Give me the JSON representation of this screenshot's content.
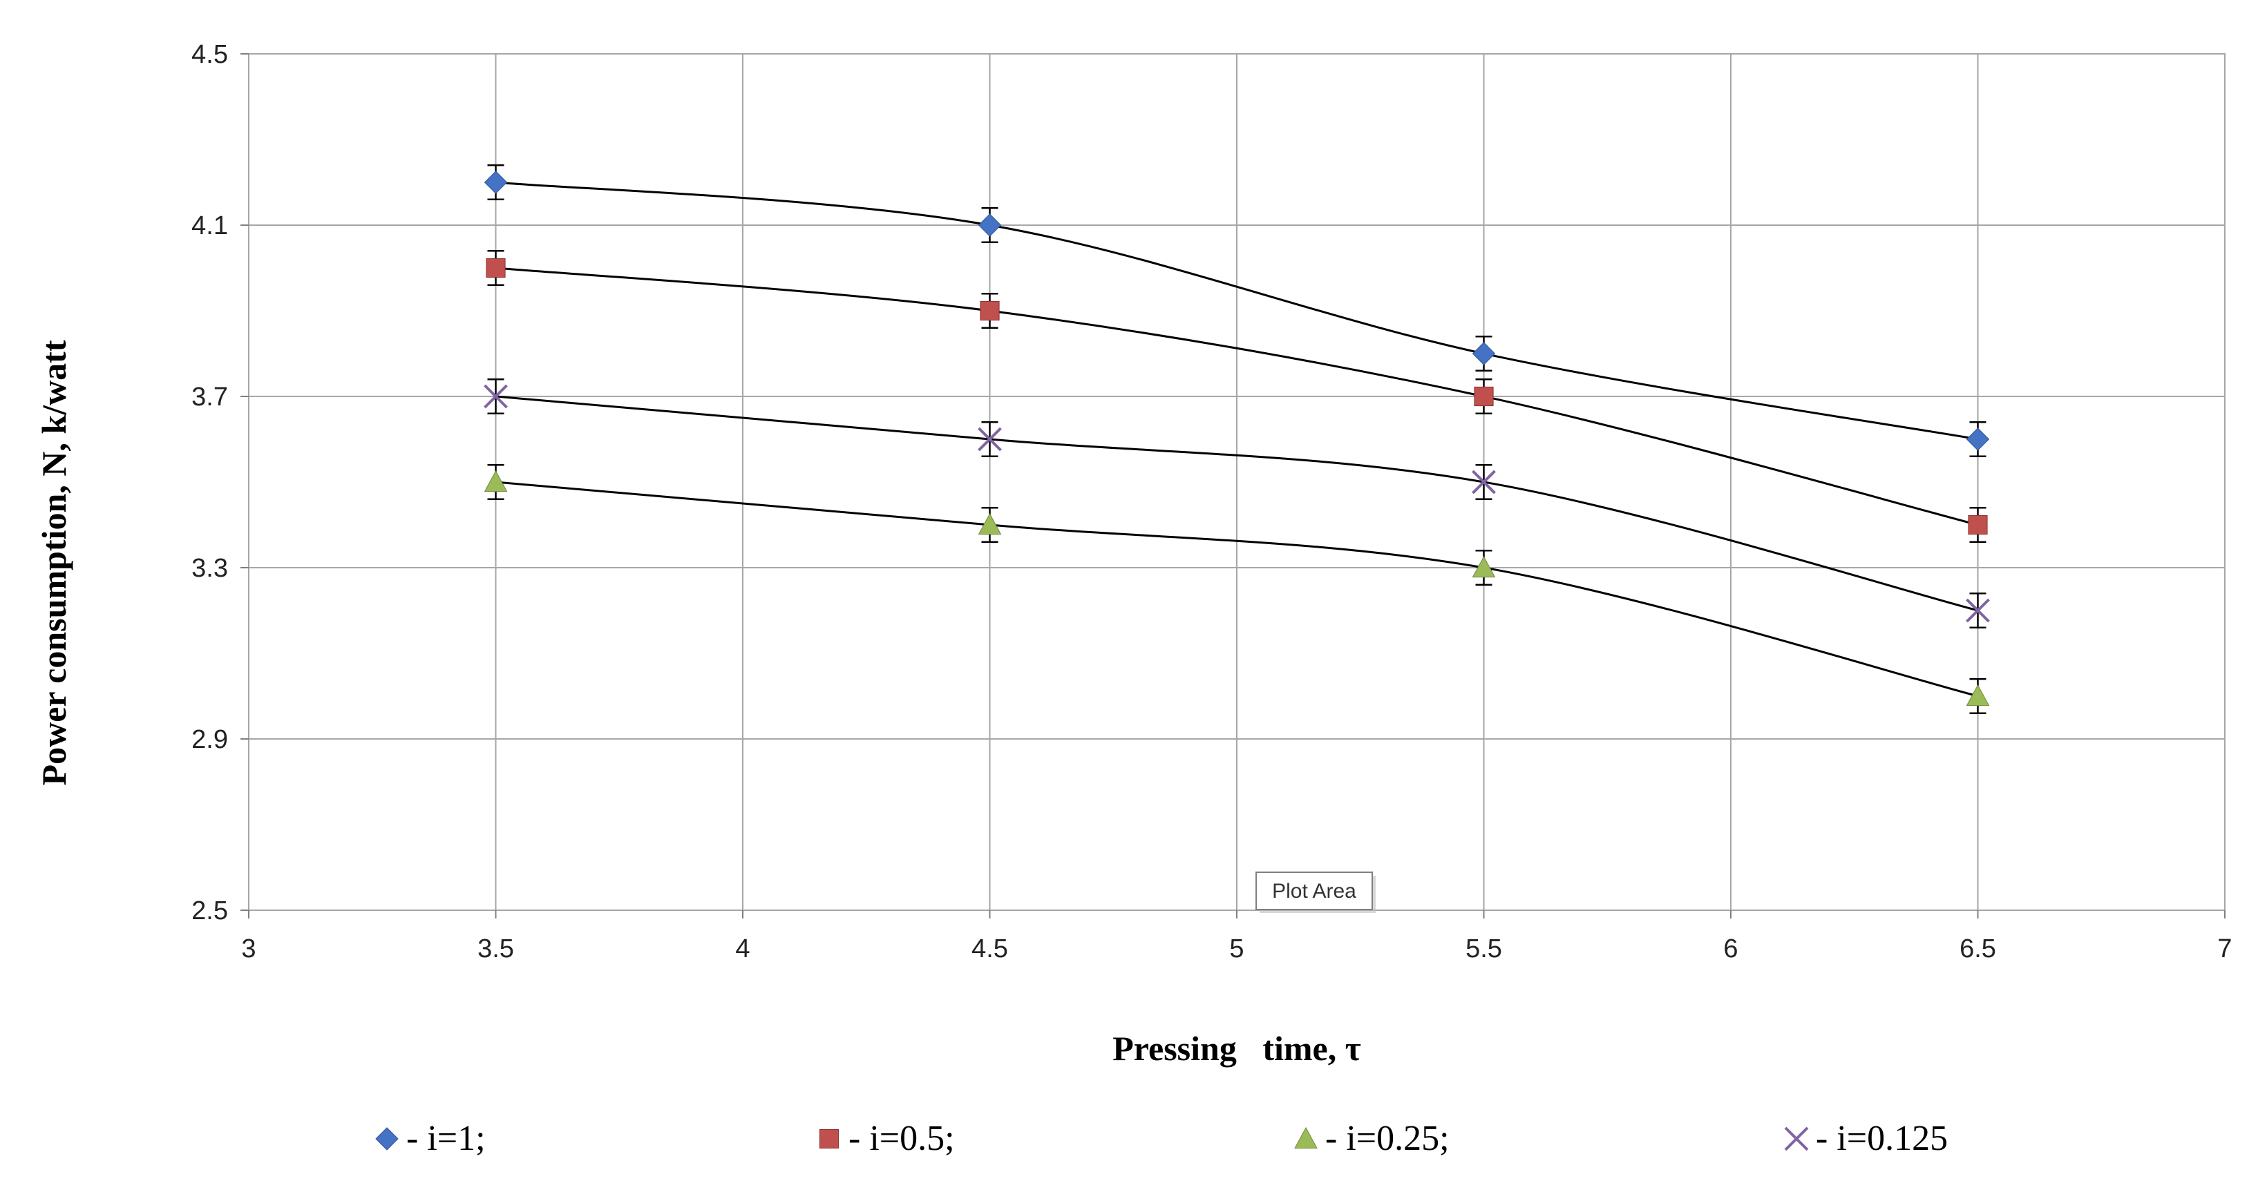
{
  "chart_data": {
    "type": "line",
    "xlabel": "Pressing   time, τ",
    "ylabel": "Power consumption,  N, k/watt",
    "xlim": [
      3,
      7
    ],
    "ylim": [
      2.5,
      4.5
    ],
    "x_ticks": [
      3,
      3.5,
      4,
      4.5,
      5,
      5.5,
      6,
      6.5,
      7
    ],
    "y_ticks": [
      2.5,
      2.9,
      3.3,
      3.7,
      4.1,
      4.5
    ],
    "x_tick_labels": [
      "3",
      "3.5",
      "4",
      "4.5",
      "5",
      "5.5",
      "6",
      "6.5",
      "7"
    ],
    "y_tick_labels": [
      "2.5",
      "2.9",
      "3.3",
      "3.7",
      "4.1",
      "4.5"
    ],
    "grid": true,
    "error_bar": 0.04,
    "x": [
      3.5,
      4.5,
      5.5,
      6.5
    ],
    "series": [
      {
        "name": "i=1",
        "legend_label": "- i=1;",
        "marker": "diamond",
        "color": "#4472C4",
        "values": [
          4.2,
          4.1,
          3.8,
          3.6
        ]
      },
      {
        "name": "i=0.5",
        "legend_label": "- i=0.5;",
        "marker": "square",
        "color": "#C0504D",
        "values": [
          4.0,
          3.9,
          3.7,
          3.4
        ]
      },
      {
        "name": "i=0.25",
        "legend_label": "- i=0.25;",
        "marker": "triangle",
        "color": "#9BBB59",
        "values": [
          3.5,
          3.4,
          3.3,
          3.0
        ]
      },
      {
        "name": "i=0.125",
        "legend_label": "- i=0.125",
        "marker": "x",
        "color": "#8064A2",
        "values": [
          3.7,
          3.6,
          3.5,
          3.2
        ]
      }
    ],
    "legend_position": "bottom",
    "tooltip": "Plot Area"
  }
}
